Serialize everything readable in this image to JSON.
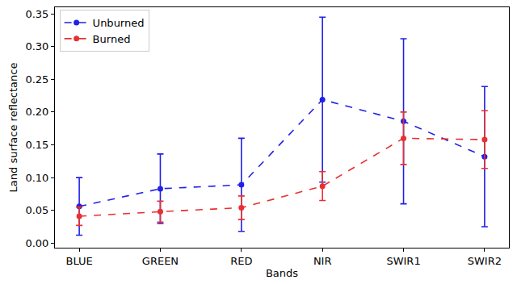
{
  "chart_data": {
    "type": "line",
    "x_label": "Bands",
    "y_label": "Land surface reflectance",
    "categories": [
      "BLUE",
      "GREEN",
      "RED",
      "NIR",
      "SWIR1",
      "SWIR2"
    ],
    "series": [
      {
        "name": "Unburned",
        "color": "#2020e8",
        "marker": "circle",
        "line_style": "dash",
        "values": [
          0.056,
          0.083,
          0.089,
          0.219,
          0.186,
          0.132
        ],
        "error": [
          0.044,
          0.053,
          0.071,
          0.126,
          0.126,
          0.107
        ]
      },
      {
        "name": "Burned",
        "color": "#e83030",
        "marker": "circle",
        "line_style": "dash",
        "values": [
          0.041,
          0.048,
          0.054,
          0.087,
          0.16,
          0.158
        ],
        "error": [
          0.014,
          0.016,
          0.018,
          0.022,
          0.04,
          0.044
        ]
      }
    ],
    "ylim": [
      -0.007,
      0.36
    ],
    "yticks": [
      {
        "value": 0,
        "label": "0.00"
      },
      0.05,
      {
        "value": 0.1,
        "label": "0.10"
      },
      0.15,
      {
        "value": 0.2,
        "label": "0.20"
      },
      0.25,
      {
        "value": 0.3,
        "label": "0.30"
      },
      0.35
    ],
    "legend": "upper left",
    "grid": false
  }
}
